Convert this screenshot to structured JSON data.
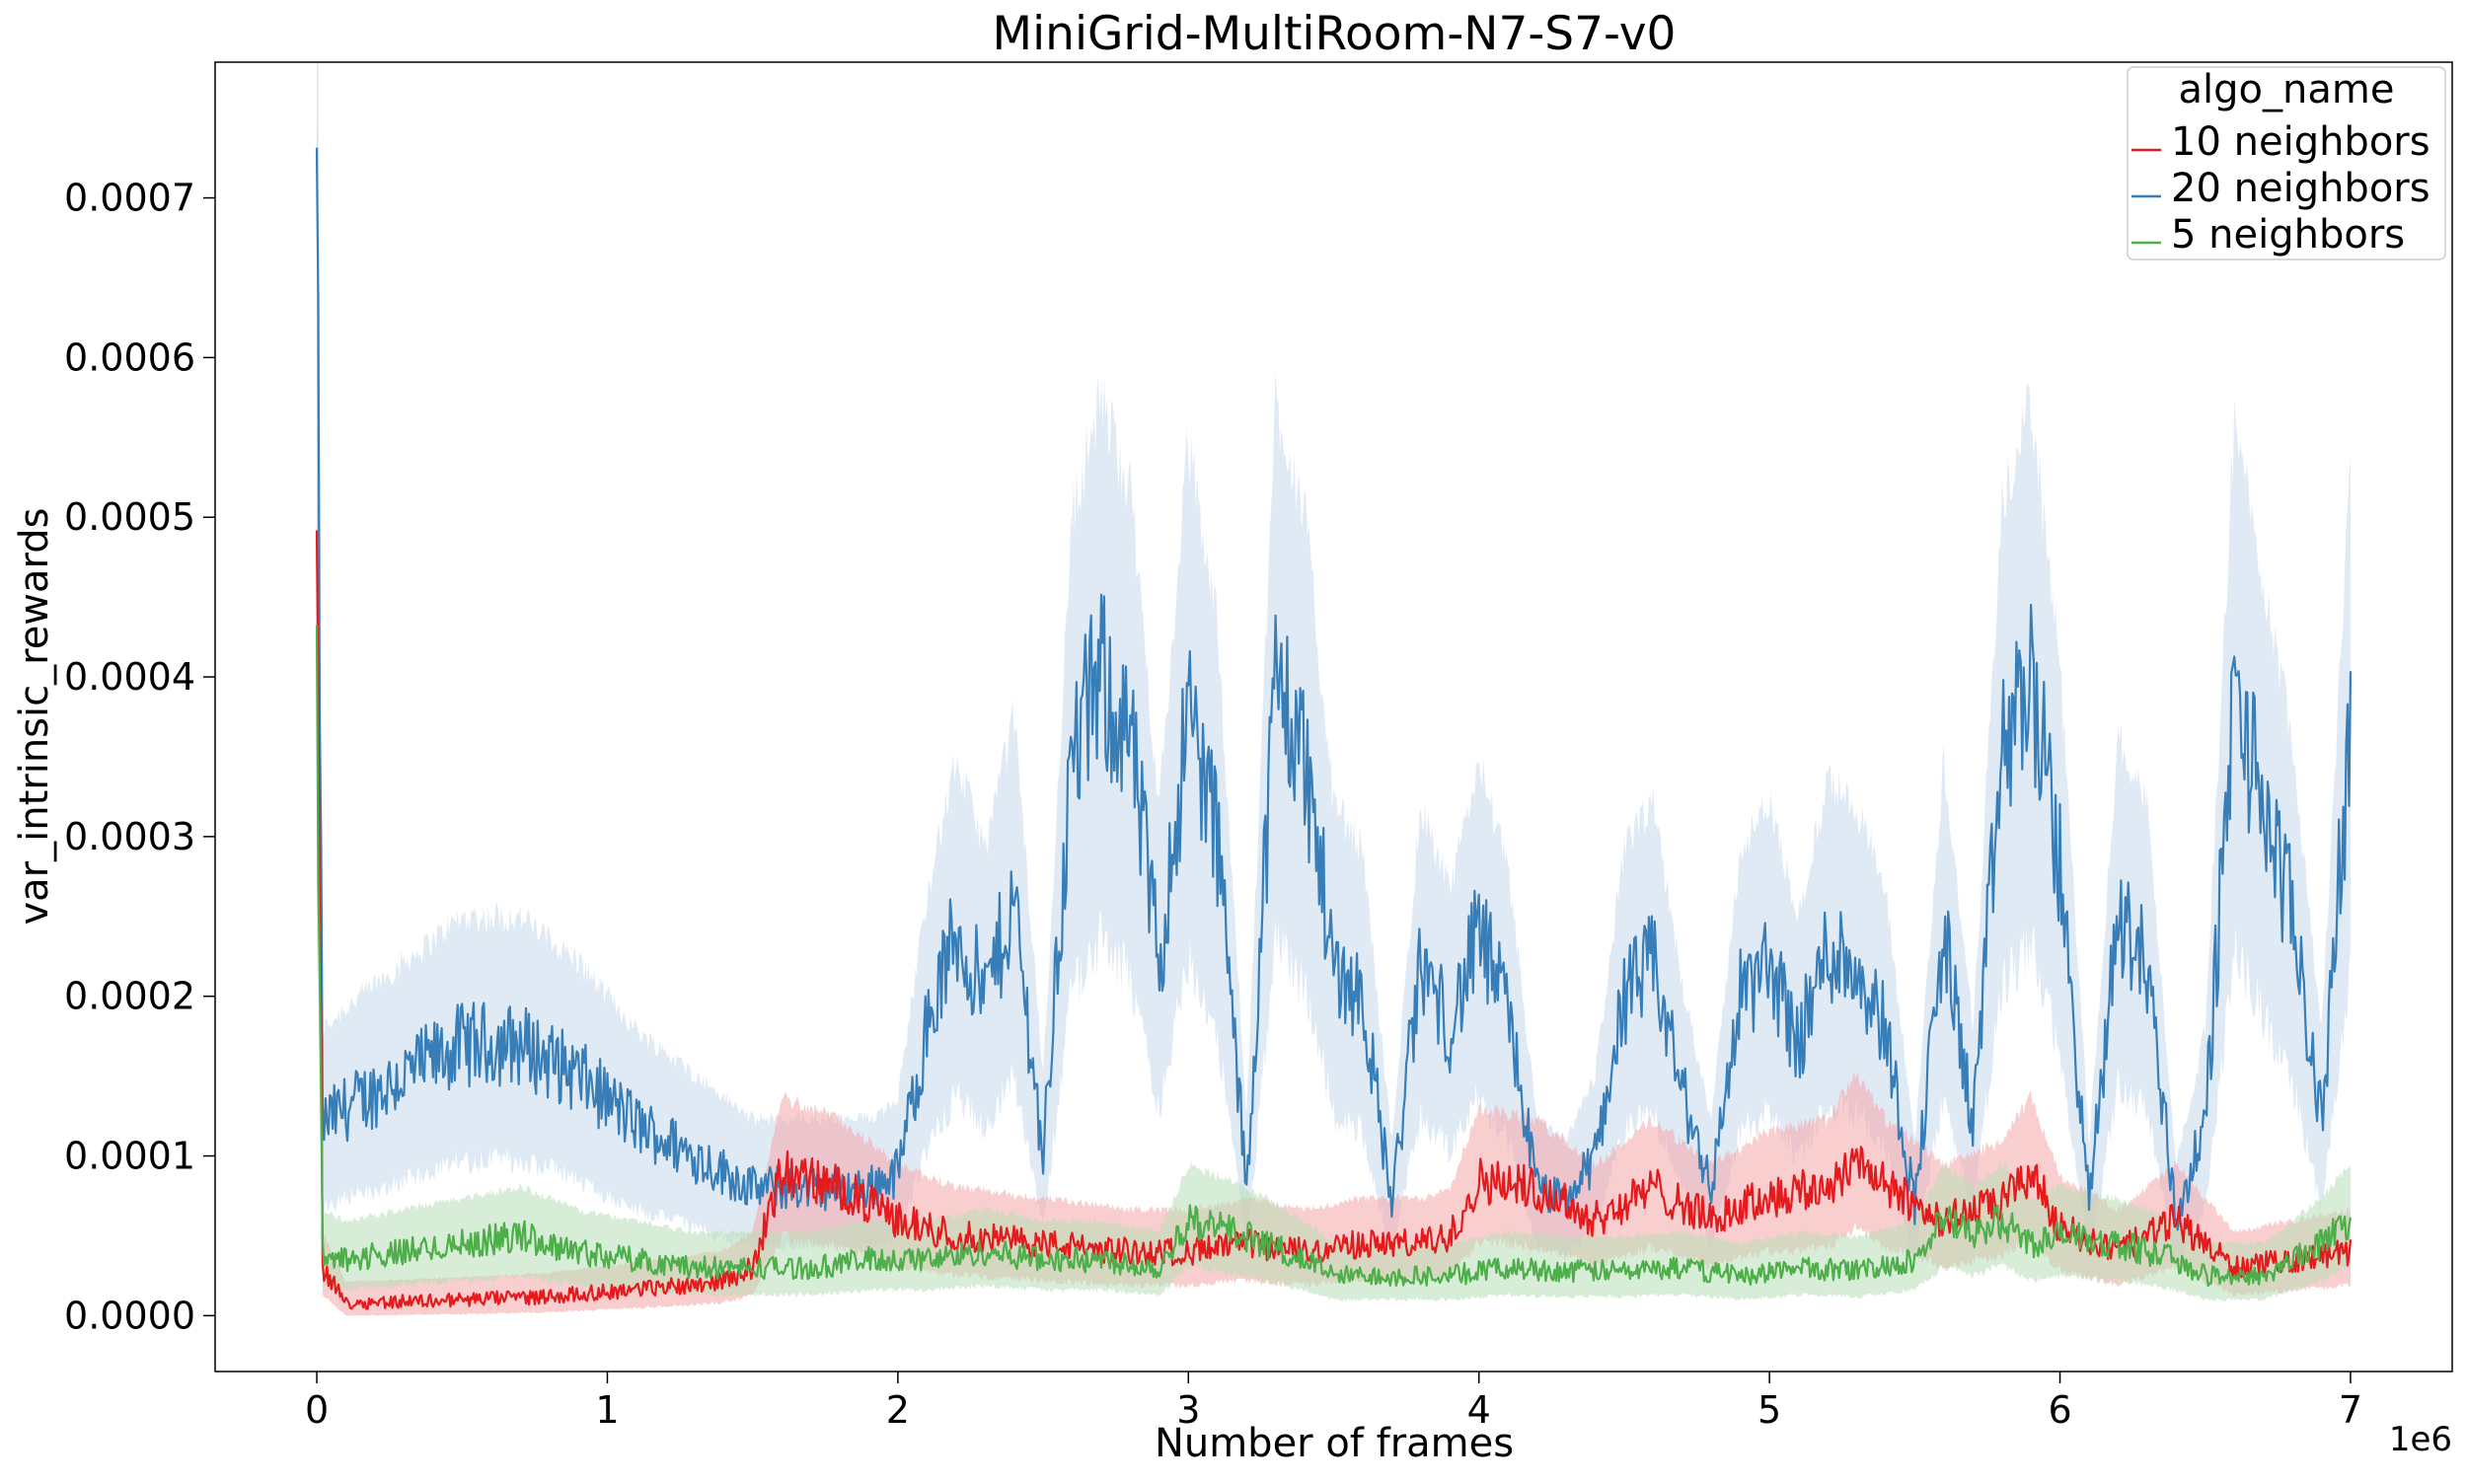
{
  "chart_data": {
    "type": "line",
    "title": "MiniGrid-MultiRoom-N7-S7-v0",
    "xlabel": "Number of frames",
    "ylabel": "var_intrinsic_rewards",
    "x_offset_label": "1e6",
    "xlim": [
      -0.35,
      7.35
    ],
    "ylim": [
      -3.5e-05,
      0.000785
    ],
    "x_ticks": [
      0,
      1,
      2,
      3,
      4,
      5,
      6,
      7
    ],
    "x_tick_labels": [
      "0",
      "1",
      "2",
      "3",
      "4",
      "5",
      "6",
      "7"
    ],
    "y_ticks": [
      0.0,
      0.0001,
      0.0002,
      0.0003,
      0.0004,
      0.0005,
      0.0006,
      0.0007
    ],
    "y_tick_labels": [
      "0.0000",
      "0.0001",
      "0.0002",
      "0.0003",
      "0.0004",
      "0.0005",
      "0.0006",
      "0.0007"
    ],
    "grid": false,
    "legend": {
      "title": "algo_name",
      "placement": "top-right",
      "entries": [
        "10 neighbors",
        "20 neighbors",
        "5 neighbors"
      ]
    },
    "series": [
      {
        "name": "10 neighbors",
        "color": "#e41a1c",
        "band_color": "#f4a6a7",
        "x": [
          0,
          0.02,
          0.1,
          0.3,
          0.5,
          0.8,
          1.0,
          1.2,
          1.4,
          1.5,
          1.6,
          1.8,
          2.0,
          2.2,
          2.5,
          2.8,
          3.0,
          3.2,
          3.4,
          3.6,
          3.8,
          3.9,
          4.0,
          4.2,
          4.4,
          4.6,
          4.8,
          5.0,
          5.2,
          5.3,
          5.4,
          5.6,
          5.8,
          5.9,
          6.0,
          6.2,
          6.4,
          6.6,
          6.8,
          7.0
        ],
        "y": [
          0.00055,
          3e-05,
          8e-06,
          9e-06,
          1e-05,
          1.2e-05,
          1.5e-05,
          1.8e-05,
          2.2e-05,
          3e-05,
          9e-05,
          8e-05,
          6e-05,
          5e-05,
          4.5e-05,
          4e-05,
          4e-05,
          4.5e-05,
          4e-05,
          4.5e-05,
          4.5e-05,
          5e-05,
          8.5e-05,
          8e-05,
          6e-05,
          8e-05,
          6e-05,
          7.5e-05,
          8e-05,
          0.0001,
          8e-05,
          6e-05,
          7e-05,
          9e-05,
          5.5e-05,
          4e-05,
          6e-05,
          3e-05,
          3.5e-05,
          4e-05
        ]
      },
      {
        "name": "20 neighbors",
        "color": "#377eb8",
        "band_color": "#c6d9ec",
        "x": [
          0,
          0.02,
          0.1,
          0.3,
          0.5,
          0.7,
          0.9,
          1.1,
          1.3,
          1.5,
          1.7,
          1.9,
          2.0,
          2.1,
          2.2,
          2.3,
          2.4,
          2.5,
          2.6,
          2.7,
          2.8,
          2.9,
          3.0,
          3.1,
          3.2,
          3.3,
          3.4,
          3.5,
          3.6,
          3.7,
          3.8,
          3.9,
          4.0,
          4.1,
          4.2,
          4.3,
          4.4,
          4.5,
          4.6,
          4.7,
          4.8,
          4.9,
          5.0,
          5.1,
          5.2,
          5.3,
          5.4,
          5.5,
          5.6,
          5.7,
          5.8,
          5.9,
          6.0,
          6.1,
          6.2,
          6.3,
          6.4,
          6.5,
          6.6,
          6.7,
          6.8,
          6.9,
          7.0
        ],
        "y": [
          0.0007,
          0.00012,
          0.00013,
          0.00015,
          0.00017,
          0.00017,
          0.00015,
          0.00012,
          0.0001,
          8e-05,
          8e-05,
          8e-05,
          9e-05,
          0.00018,
          0.00024,
          0.0002,
          0.00026,
          0.0001,
          0.00035,
          0.0004,
          0.00036,
          0.00022,
          0.00038,
          0.0003,
          8e-05,
          0.0004,
          0.00035,
          0.00022,
          0.0002,
          7e-05,
          0.00022,
          0.00018,
          0.00024,
          0.00019,
          8e-05,
          7e-05,
          0.0001,
          0.0002,
          0.00022,
          0.00014,
          8e-05,
          0.0002,
          0.00022,
          0.00017,
          0.00023,
          0.00022,
          0.00018,
          7e-05,
          0.00024,
          0.00012,
          0.00035,
          0.0004,
          0.00028,
          7e-05,
          0.00025,
          0.00022,
          6e-05,
          0.00012,
          0.00039,
          0.00032,
          0.00025,
          0.00012,
          0.00037
        ]
      },
      {
        "name": "5 neighbors",
        "color": "#4daf4a",
        "band_color": "#b8deb6",
        "x": [
          0,
          0.02,
          0.1,
          0.3,
          0.5,
          0.7,
          0.9,
          1.1,
          1.3,
          1.5,
          1.7,
          1.9,
          2.1,
          2.3,
          2.5,
          2.7,
          2.9,
          3.0,
          3.2,
          3.4,
          3.5,
          3.7,
          3.9,
          4.1,
          4.3,
          4.5,
          4.7,
          4.9,
          5.1,
          5.3,
          5.5,
          5.6,
          5.7,
          5.8,
          5.9,
          6.0,
          6.2,
          6.4,
          6.5,
          6.7,
          6.9,
          7.0
        ],
        "y": [
          0.00041,
          4e-05,
          3.5e-05,
          4e-05,
          4.5e-05,
          5e-05,
          4e-05,
          3.5e-05,
          3e-05,
          3e-05,
          3e-05,
          3.5e-05,
          3.5e-05,
          4e-05,
          3.5e-05,
          3.5e-05,
          3e-05,
          6e-05,
          5e-05,
          3.5e-05,
          2.5e-05,
          2.5e-05,
          2.5e-05,
          3e-05,
          2.8e-05,
          2.8e-05,
          3e-05,
          2.5e-05,
          3e-05,
          2.8e-05,
          3.5e-05,
          6e-05,
          5e-05,
          6e-05,
          4.5e-05,
          5e-05,
          4.5e-05,
          3.5e-05,
          2.5e-05,
          2.5e-05,
          4.5e-05,
          6e-05
        ]
      }
    ]
  }
}
